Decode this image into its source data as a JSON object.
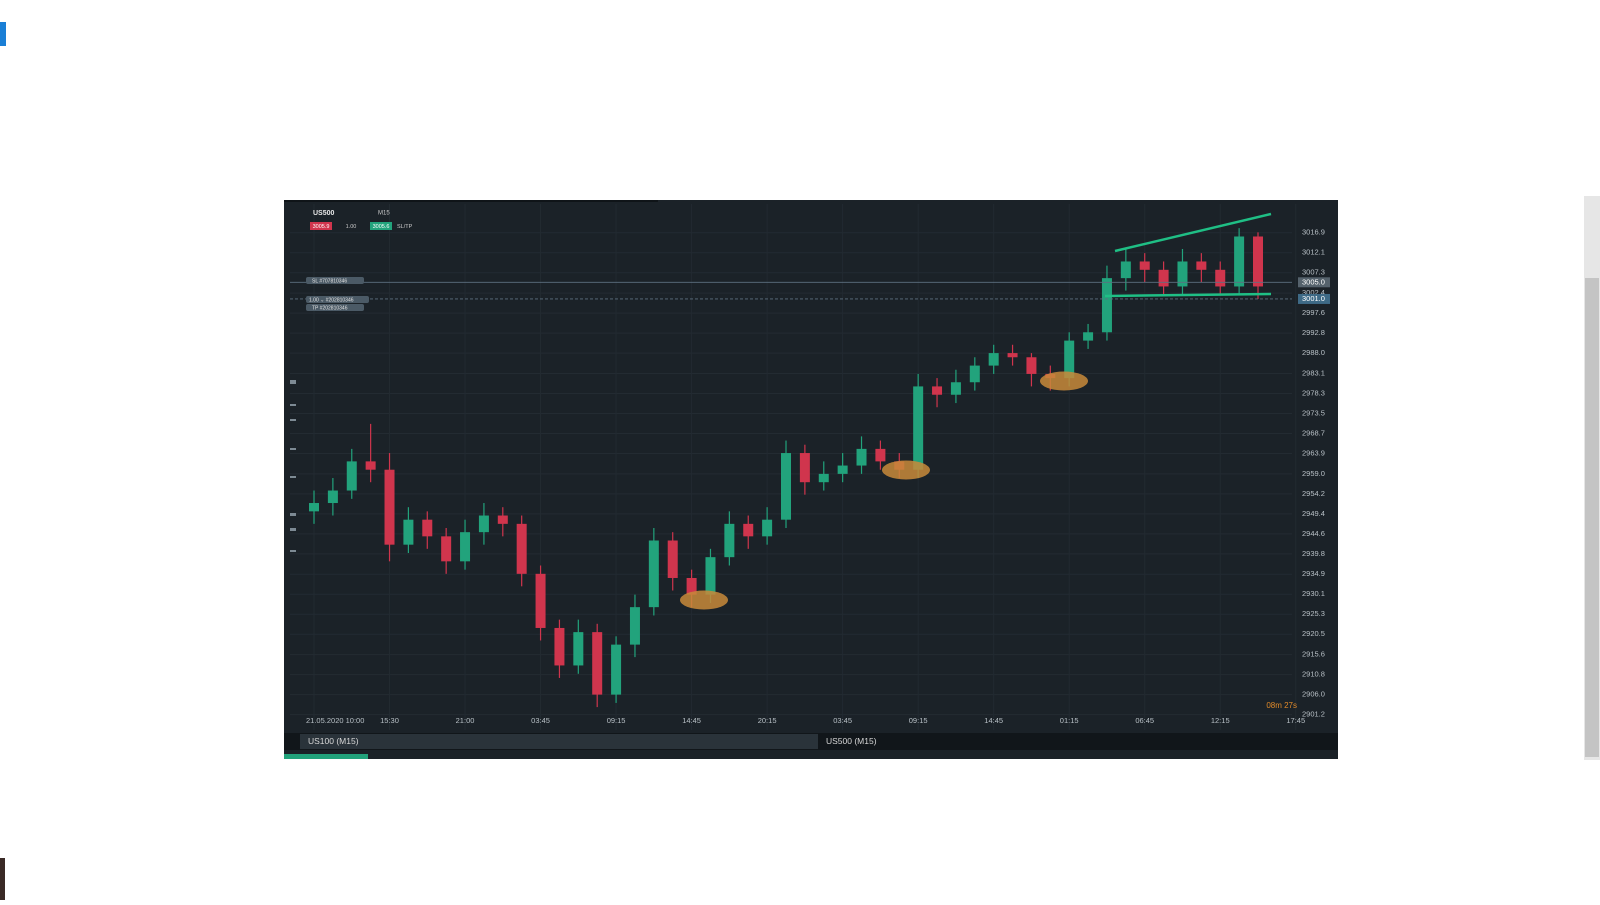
{
  "toolbar": {
    "symbol": "US500",
    "timeframe": "M15",
    "sell_price": "3005.9",
    "volume": "1.00",
    "buy_price": "3005.6",
    "sltp": "SL/TP"
  },
  "orders": {
    "sl": "SL #707810346",
    "position": "1.00 ⌄ #202810346",
    "tp": "TP #202810346"
  },
  "timer": "08m 27s",
  "tabs": [
    "US100 (M15)",
    "US500 (M15)"
  ],
  "chart_data": {
    "type": "candlestick",
    "categories": [
      "21.05.2020 10:00",
      null,
      null,
      null,
      "15:30",
      null,
      null,
      null,
      "21:00",
      null,
      null,
      null,
      "03:45",
      null,
      null,
      null,
      "09:15",
      null,
      null,
      null,
      "14:45",
      null,
      null,
      null,
      "20:15",
      null,
      null,
      null,
      "03:45",
      null,
      null,
      null,
      "09:15",
      null,
      null,
      null,
      "14:45",
      null,
      null,
      null,
      "01:15",
      null,
      null,
      null,
      "06:45",
      null,
      null,
      null,
      "12:15",
      null,
      null,
      null,
      "17:45"
    ],
    "open": [
      2950,
      2952,
      2955,
      2962,
      2960,
      2942,
      2948,
      2944,
      2938,
      2945,
      2949,
      2947,
      2935,
      2922,
      2913,
      2921,
      2906,
      2918,
      2927,
      2943,
      2934,
      2930,
      2939,
      2947,
      2944,
      2948,
      2964,
      2957,
      2959,
      2961,
      2965,
      2962,
      2960,
      2980,
      2978,
      2981,
      2985,
      2988,
      2987,
      2983,
      2982,
      2991,
      2993,
      3006,
      3010,
      3008,
      3004,
      3010,
      3008,
      3004,
      3016,
      null,
      null
    ],
    "high": [
      2955,
      2958,
      2965,
      2971,
      2964,
      2951,
      2950,
      2946,
      2948,
      2952,
      2951,
      2949,
      2937,
      2924,
      2924,
      2923,
      2920,
      2930,
      2946,
      2945,
      2936,
      2941,
      2950,
      2949,
      2951,
      2967,
      2966,
      2962,
      2964,
      2968,
      2967,
      2964,
      2983,
      2982,
      2984,
      2987,
      2990,
      2990,
      2988,
      2985,
      2993,
      2995,
      3009,
      3013,
      3012,
      3010,
      3013,
      3012,
      3010,
      3018,
      3017,
      null,
      null
    ],
    "low": [
      2947,
      2949,
      2953,
      2957,
      2938,
      2940,
      2941,
      2935,
      2936,
      2942,
      2944,
      2932,
      2919,
      2910,
      2911,
      2903,
      2904,
      2915,
      2925,
      2931,
      2927,
      2928,
      2937,
      2941,
      2942,
      2946,
      2954,
      2955,
      2957,
      2959,
      2960,
      2958,
      2958,
      2975,
      2976,
      2979,
      2983,
      2985,
      2980,
      2979,
      2980,
      2989,
      2991,
      3003,
      3005,
      3002,
      3002,
      3005,
      3002,
      3002,
      3001,
      null,
      null
    ],
    "close": [
      2952,
      2955,
      2962,
      2960,
      2942,
      2948,
      2944,
      2938,
      2945,
      2949,
      2947,
      2935,
      2922,
      2913,
      2921,
      2906,
      2918,
      2927,
      2943,
      2934,
      2930,
      2939,
      2947,
      2944,
      2948,
      2964,
      2957,
      2959,
      2961,
      2965,
      2962,
      2960,
      2980,
      2978,
      2981,
      2985,
      2988,
      2987,
      2983,
      2982,
      2991,
      2993,
      3006,
      3010,
      3008,
      3004,
      3010,
      3008,
      3004,
      3016,
      3004,
      null,
      null
    ],
    "up_color": "#22a37c",
    "down_color": "#d0354d",
    "ylim": [
      2897.5,
      3023.8
    ],
    "yticks": [
      3016.9,
      3012.1,
      3007.3,
      3002.4,
      2997.6,
      2992.8,
      {
        "value": 2988,
        "label": "2988.0"
      },
      2983.1,
      2978.3,
      2973.5,
      2968.7,
      2963.9,
      {
        "value": 2959,
        "label": "2959.0"
      },
      2954.2,
      2949.4,
      2944.6,
      2939.8,
      2934.9,
      2930.1,
      2925.3,
      2920.5,
      2915.6,
      2910.8,
      {
        "value": 2906,
        "label": "2906.0"
      },
      2901.2
    ],
    "price_markers": [
      {
        "value": 3005,
        "label": "3005.0"
      },
      {
        "value": 3001,
        "label": "3001.0"
      }
    ],
    "grid": true
  }
}
